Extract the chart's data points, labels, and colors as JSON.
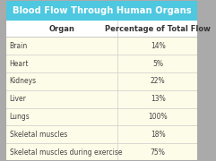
{
  "title": "Blood Flow Through Human Organs",
  "title_bg": "#4dc8e0",
  "title_color": "#ffffff",
  "header": [
    "Organ",
    "Percentage of Total Flow"
  ],
  "header_bg": "#ffffff",
  "header_color": "#333333",
  "rows": [
    [
      "Brain",
      "14%"
    ],
    [
      "Heart",
      "5%"
    ],
    [
      "Kidneys",
      "22%"
    ],
    [
      "Liver",
      "13%"
    ],
    [
      "Lungs",
      "100%"
    ],
    [
      "Skeletal muscles",
      "18%"
    ],
    [
      "Skeletal muscles during exercise",
      "75%"
    ]
  ],
  "row_bg": "#fdfce8",
  "row_color": "#444444",
  "border_color": "#cccccc",
  "outer_border_color": "#aaaaaa",
  "col_split": 0.58
}
